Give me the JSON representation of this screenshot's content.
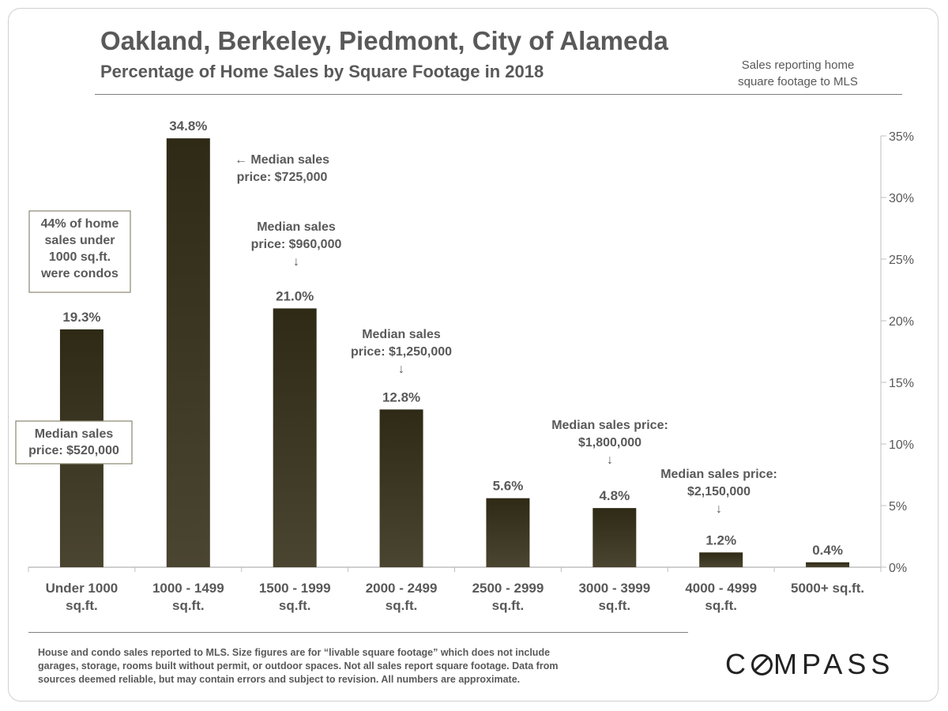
{
  "header": {
    "title": "Oakland, Berkeley, Piedmont, City of Alameda",
    "subtitle": "Percentage of Home Sales by Square Footage in 2018",
    "note_line1": "Sales reporting home",
    "note_line2": "square footage to MLS"
  },
  "chart_data": {
    "type": "bar",
    "title": "",
    "xlabel": "",
    "ylabel": "",
    "ylim": [
      0,
      35
    ],
    "yticks": [
      0,
      5,
      10,
      15,
      20,
      25,
      30,
      35
    ],
    "ytick_labels": [
      "0%",
      "5%",
      "10%",
      "15%",
      "20%",
      "25%",
      "30%",
      "35%"
    ],
    "y_axis_position": "right",
    "grid": false,
    "categories": [
      [
        "Under 1000",
        "sq.ft."
      ],
      [
        "1000 - 1499",
        "sq.ft."
      ],
      [
        "1500 - 1999",
        "sq.ft."
      ],
      [
        "2000 - 2499",
        "sq.ft."
      ],
      [
        "2500 - 2999",
        "sq.ft."
      ],
      [
        "3000 - 3999",
        "sq.ft."
      ],
      [
        "4000 - 4999",
        "sq.ft."
      ],
      [
        "5000+ sq.ft."
      ]
    ],
    "values": [
      19.3,
      34.8,
      21.0,
      12.8,
      5.6,
      4.8,
      1.2,
      0.4
    ],
    "data_labels": [
      "19.3%",
      "34.8%",
      "21.0%",
      "12.8%",
      "5.6%",
      "4.8%",
      "1.2%",
      "0.4%"
    ],
    "bar_colors": {
      "dark": "#2e2a16",
      "base": "#4a4530"
    },
    "annotations": [
      {
        "bar": 1,
        "lines": [
          "← Median sales",
          "price: $725,000"
        ]
      },
      {
        "bar": 2,
        "lines": [
          "Median sales",
          "price: $960,000",
          "↓"
        ]
      },
      {
        "bar": 3,
        "lines": [
          "Median sales",
          "price: $1,250,000",
          "↓"
        ]
      },
      {
        "bar": 5,
        "lines": [
          "Median sales price:",
          "$1,800,000",
          "↓"
        ]
      },
      {
        "bar": 6,
        "lines": [
          "Median sales price:",
          "$2,150,000",
          "↓"
        ]
      }
    ],
    "boxed_notes": [
      {
        "bar": 0,
        "lines": [
          "44% of home",
          "sales under",
          "1000 sq.ft.",
          "were condos"
        ]
      },
      {
        "bar": 0,
        "lines": [
          "Median sales",
          "price: $520,000"
        ]
      }
    ]
  },
  "footer": {
    "lines": [
      "House and condo sales reported to MLS. Size figures are for “livable square footage” which does not include",
      "garages, storage, rooms built without permit, or outdoor spaces. Not all sales report square footage. Data from",
      "sources deemed reliable, but may contain errors and subject to revision.  All numbers are approximate."
    ]
  },
  "brand": {
    "logo_left": "C",
    "logo_right": "MPASS"
  }
}
